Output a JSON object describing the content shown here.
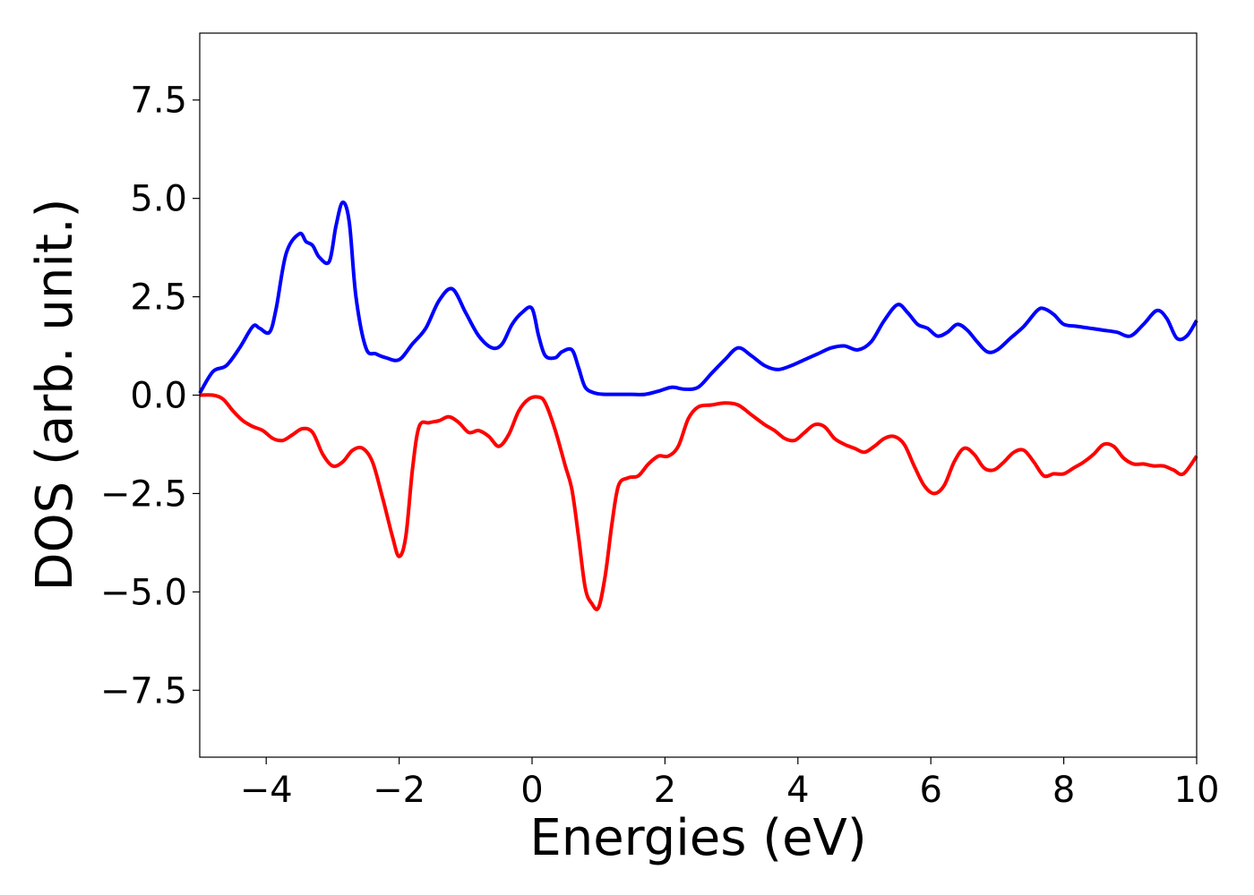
{
  "chart_data": {
    "type": "line",
    "title": "",
    "xlabel": "Energies (eV)",
    "ylabel": "DOS (arb. unit.)",
    "xlim": [
      -5,
      10
    ],
    "ylim": [
      -9.2,
      9.2
    ],
    "xticks": [
      -4,
      -2,
      0,
      2,
      4,
      6,
      8,
      10
    ],
    "xtick_labels": [
      "−4",
      "−2",
      "0",
      "2",
      "4",
      "6",
      "8",
      "10"
    ],
    "yticks": [
      7.5,
      5.0,
      2.5,
      0.0,
      -2.5,
      -5.0,
      -7.5
    ],
    "ytick_labels": [
      "7.5",
      "5.0",
      "2.5",
      "0.0",
      "−2.5",
      "−5.0",
      "−7.5"
    ],
    "grid": false,
    "legend": "none",
    "series": [
      {
        "color": "#0000ff",
        "x": [
          -5.0,
          -4.8,
          -4.6,
          -4.4,
          -4.2,
          -4.1,
          -3.95,
          -3.85,
          -3.7,
          -3.5,
          -3.4,
          -3.3,
          -3.2,
          -3.05,
          -2.95,
          -2.85,
          -2.75,
          -2.65,
          -2.5,
          -2.35,
          -2.2,
          -2.0,
          -1.8,
          -1.6,
          -1.4,
          -1.2,
          -1.0,
          -0.8,
          -0.6,
          -0.45,
          -0.3,
          -0.15,
          0.0,
          0.1,
          0.2,
          0.35,
          0.45,
          0.6,
          0.7,
          0.8,
          0.95,
          1.1,
          1.3,
          1.5,
          1.7,
          1.9,
          2.1,
          2.3,
          2.5,
          2.7,
          2.9,
          3.1,
          3.3,
          3.5,
          3.7,
          3.9,
          4.1,
          4.3,
          4.5,
          4.7,
          4.9,
          5.1,
          5.3,
          5.5,
          5.65,
          5.8,
          5.95,
          6.1,
          6.25,
          6.4,
          6.55,
          6.7,
          6.85,
          7.0,
          7.2,
          7.4,
          7.6,
          7.7,
          7.85,
          8.0,
          8.2,
          8.4,
          8.6,
          8.8,
          9.0,
          9.2,
          9.4,
          9.55,
          9.7,
          9.85,
          10.0
        ],
        "y": [
          0.05,
          0.6,
          0.75,
          1.2,
          1.75,
          1.7,
          1.6,
          2.2,
          3.6,
          4.1,
          3.9,
          3.8,
          3.5,
          3.4,
          4.3,
          4.9,
          4.4,
          2.5,
          1.2,
          1.05,
          0.95,
          0.9,
          1.3,
          1.7,
          2.4,
          2.7,
          2.1,
          1.5,
          1.2,
          1.3,
          1.8,
          2.1,
          2.2,
          1.5,
          1.0,
          0.95,
          1.1,
          1.15,
          0.7,
          0.2,
          0.05,
          0.02,
          0.02,
          0.02,
          0.02,
          0.1,
          0.2,
          0.15,
          0.2,
          0.55,
          0.9,
          1.2,
          1.0,
          0.75,
          0.65,
          0.75,
          0.9,
          1.05,
          1.2,
          1.25,
          1.15,
          1.35,
          1.9,
          2.3,
          2.1,
          1.8,
          1.7,
          1.5,
          1.6,
          1.8,
          1.65,
          1.35,
          1.1,
          1.15,
          1.45,
          1.75,
          2.15,
          2.2,
          2.05,
          1.8,
          1.75,
          1.7,
          1.65,
          1.6,
          1.5,
          1.8,
          2.15,
          1.95,
          1.45,
          1.5,
          1.9
        ]
      },
      {
        "color": "#ff0000",
        "x": [
          -5.0,
          -4.8,
          -4.65,
          -4.5,
          -4.35,
          -4.2,
          -4.05,
          -3.9,
          -3.75,
          -3.6,
          -3.45,
          -3.3,
          -3.15,
          -3.0,
          -2.85,
          -2.7,
          -2.55,
          -2.4,
          -2.25,
          -2.1,
          -2.0,
          -1.9,
          -1.8,
          -1.7,
          -1.55,
          -1.4,
          -1.25,
          -1.1,
          -0.95,
          -0.8,
          -0.65,
          -0.5,
          -0.35,
          -0.2,
          -0.05,
          0.1,
          0.2,
          0.35,
          0.5,
          0.6,
          0.7,
          0.8,
          0.9,
          1.0,
          1.1,
          1.2,
          1.3,
          1.45,
          1.6,
          1.75,
          1.9,
          2.05,
          2.2,
          2.35,
          2.5,
          2.7,
          2.9,
          3.1,
          3.3,
          3.5,
          3.65,
          3.8,
          3.95,
          4.1,
          4.25,
          4.4,
          4.55,
          4.7,
          4.85,
          5.0,
          5.15,
          5.3,
          5.45,
          5.6,
          5.75,
          5.9,
          6.05,
          6.2,
          6.35,
          6.5,
          6.65,
          6.8,
          6.95,
          7.1,
          7.25,
          7.4,
          7.55,
          7.7,
          7.85,
          8.0,
          8.15,
          8.3,
          8.45,
          8.6,
          8.75,
          8.9,
          9.05,
          9.2,
          9.35,
          9.5,
          9.65,
          9.8,
          10.0
        ],
        "y": [
          0.0,
          0.0,
          -0.1,
          -0.4,
          -0.65,
          -0.8,
          -0.9,
          -1.1,
          -1.15,
          -1.0,
          -0.85,
          -0.95,
          -1.5,
          -1.8,
          -1.7,
          -1.4,
          -1.35,
          -1.7,
          -2.6,
          -3.6,
          -4.1,
          -3.6,
          -1.9,
          -0.8,
          -0.7,
          -0.65,
          -0.55,
          -0.7,
          -0.95,
          -0.9,
          -1.05,
          -1.3,
          -1.0,
          -0.4,
          -0.1,
          -0.05,
          -0.2,
          -0.9,
          -1.8,
          -2.4,
          -3.6,
          -4.9,
          -5.3,
          -5.4,
          -4.6,
          -3.3,
          -2.3,
          -2.1,
          -2.05,
          -1.75,
          -1.55,
          -1.55,
          -1.3,
          -0.6,
          -0.3,
          -0.25,
          -0.2,
          -0.25,
          -0.5,
          -0.75,
          -0.9,
          -1.1,
          -1.15,
          -0.95,
          -0.75,
          -0.8,
          -1.1,
          -1.25,
          -1.35,
          -1.45,
          -1.3,
          -1.1,
          -1.05,
          -1.25,
          -1.8,
          -2.3,
          -2.5,
          -2.3,
          -1.7,
          -1.35,
          -1.5,
          -1.85,
          -1.9,
          -1.7,
          -1.45,
          -1.4,
          -1.7,
          -2.05,
          -2.0,
          -2.0,
          -1.85,
          -1.7,
          -1.5,
          -1.25,
          -1.3,
          -1.6,
          -1.75,
          -1.75,
          -1.8,
          -1.8,
          -1.9,
          -2.0,
          -1.55
        ]
      }
    ]
  }
}
